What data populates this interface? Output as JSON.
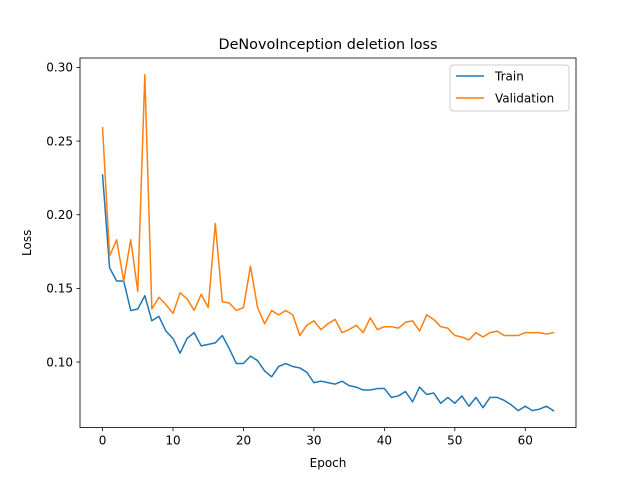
{
  "chart_data": {
    "type": "line",
    "title": "DeNovoInception deletion loss",
    "xlabel": "Epoch",
    "ylabel": "Loss",
    "xlim": [
      -3.2,
      67.2
    ],
    "ylim": [
      0.0555,
      0.3064
    ],
    "xticks": [
      0,
      10,
      20,
      30,
      40,
      50,
      60
    ],
    "xtick_labels": [
      "0",
      "10",
      "20",
      "30",
      "40",
      "50",
      "60"
    ],
    "yticks": [
      0.1,
      0.15,
      0.2,
      0.25,
      0.3
    ],
    "ytick_labels": [
      "0.10",
      "0.15",
      "0.20",
      "0.25",
      "0.30"
    ],
    "grid": false,
    "legend_position": "top-right",
    "x": [
      0,
      1,
      2,
      3,
      4,
      5,
      6,
      7,
      8,
      9,
      10,
      11,
      12,
      13,
      14,
      15,
      16,
      17,
      18,
      19,
      20,
      21,
      22,
      23,
      24,
      25,
      26,
      27,
      28,
      29,
      30,
      31,
      32,
      33,
      34,
      35,
      36,
      37,
      38,
      39,
      40,
      41,
      42,
      43,
      44,
      45,
      46,
      47,
      48,
      49,
      50,
      51,
      52,
      53,
      54,
      55,
      56,
      57,
      58,
      59,
      60,
      61,
      62,
      63,
      64
    ],
    "series": [
      {
        "name": "Train",
        "color": "#1f77b4",
        "values": [
          0.227,
          0.164,
          0.155,
          0.155,
          0.135,
          0.136,
          0.145,
          0.128,
          0.131,
          0.121,
          0.116,
          0.106,
          0.116,
          0.12,
          0.111,
          0.112,
          0.113,
          0.118,
          0.109,
          0.099,
          0.099,
          0.104,
          0.101,
          0.094,
          0.09,
          0.097,
          0.099,
          0.097,
          0.096,
          0.093,
          0.086,
          0.087,
          0.086,
          0.085,
          0.087,
          0.084,
          0.083,
          0.081,
          0.081,
          0.082,
          0.082,
          0.076,
          0.077,
          0.08,
          0.073,
          0.083,
          0.078,
          0.079,
          0.072,
          0.076,
          0.072,
          0.077,
          0.07,
          0.076,
          0.069,
          0.076,
          0.076,
          0.074,
          0.071,
          0.067,
          0.07,
          0.067,
          0.068,
          0.07,
          0.067
        ]
      },
      {
        "name": "Validation",
        "color": "#ff7f0e",
        "values": [
          0.259,
          0.172,
          0.183,
          0.155,
          0.183,
          0.148,
          0.295,
          0.136,
          0.144,
          0.139,
          0.133,
          0.147,
          0.143,
          0.135,
          0.146,
          0.137,
          0.194,
          0.141,
          0.14,
          0.135,
          0.137,
          0.165,
          0.137,
          0.126,
          0.135,
          0.132,
          0.135,
          0.132,
          0.118,
          0.125,
          0.128,
          0.122,
          0.126,
          0.129,
          0.12,
          0.122,
          0.125,
          0.12,
          0.13,
          0.122,
          0.124,
          0.124,
          0.123,
          0.127,
          0.128,
          0.121,
          0.132,
          0.129,
          0.124,
          0.123,
          0.118,
          0.117,
          0.115,
          0.12,
          0.117,
          0.12,
          0.121,
          0.118,
          0.118,
          0.118,
          0.12,
          0.12,
          0.12,
          0.119,
          0.12
        ]
      }
    ]
  }
}
